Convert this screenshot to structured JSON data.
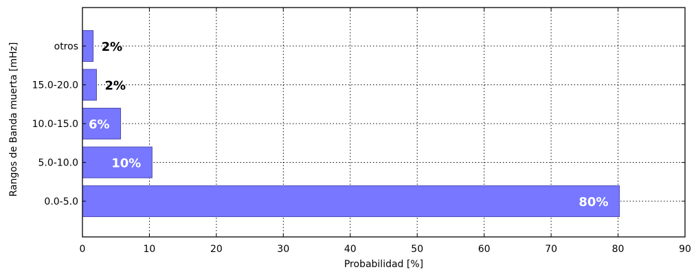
{
  "chart_data": {
    "type": "bar",
    "orientation": "horizontal",
    "title": "",
    "xlabel": "Probabilidad [%]",
    "ylabel": "Rangos de Banda muerta [mHz]",
    "categories": [
      "0.0-5.0",
      "5.0-10.0",
      "10.0-15.0",
      "15.0-20.0",
      "otros"
    ],
    "values": [
      80.2,
      10.4,
      5.7,
      2.1,
      1.6
    ],
    "data_labels": [
      "80%",
      "10%",
      "6%",
      "2%",
      "2%"
    ],
    "xlim": [
      0,
      90
    ],
    "xticks": [
      0,
      10,
      20,
      30,
      40,
      50,
      60,
      70,
      80,
      90
    ],
    "grid": true,
    "bar_color": "#7777ff",
    "bar_edge_color": "#4d4db3"
  }
}
